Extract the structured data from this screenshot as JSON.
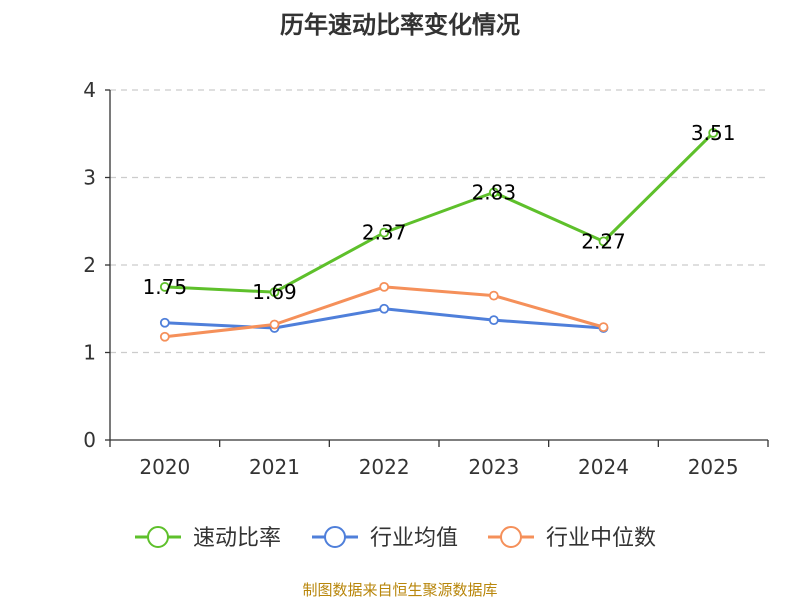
{
  "chart_data": {
    "type": "line",
    "title": "历年速动比率变化情况",
    "categories": [
      "2020",
      "2021",
      "2022",
      "2023",
      "2024",
      "2025"
    ],
    "ylim": [
      0,
      4
    ],
    "yticks": [
      0,
      1,
      2,
      3,
      4
    ],
    "grid": true,
    "legend": "bottom",
    "series": [
      {
        "name": "速动比率",
        "color": "#5ec02b",
        "values": [
          1.75,
          1.69,
          2.37,
          2.83,
          2.27,
          3.51
        ],
        "labels": [
          "1.75",
          "1.69",
          "2.37",
          "2.83",
          "2.27",
          "3.51"
        ]
      },
      {
        "name": "行业均值",
        "color": "#4f7fda",
        "values": [
          1.34,
          1.28,
          1.5,
          1.37,
          1.28,
          null
        ]
      },
      {
        "name": "行业中位数",
        "color": "#f5905a",
        "values": [
          1.18,
          1.32,
          1.75,
          1.65,
          1.29,
          null
        ]
      }
    ]
  },
  "source": "制图数据来自恒生聚源数据库"
}
